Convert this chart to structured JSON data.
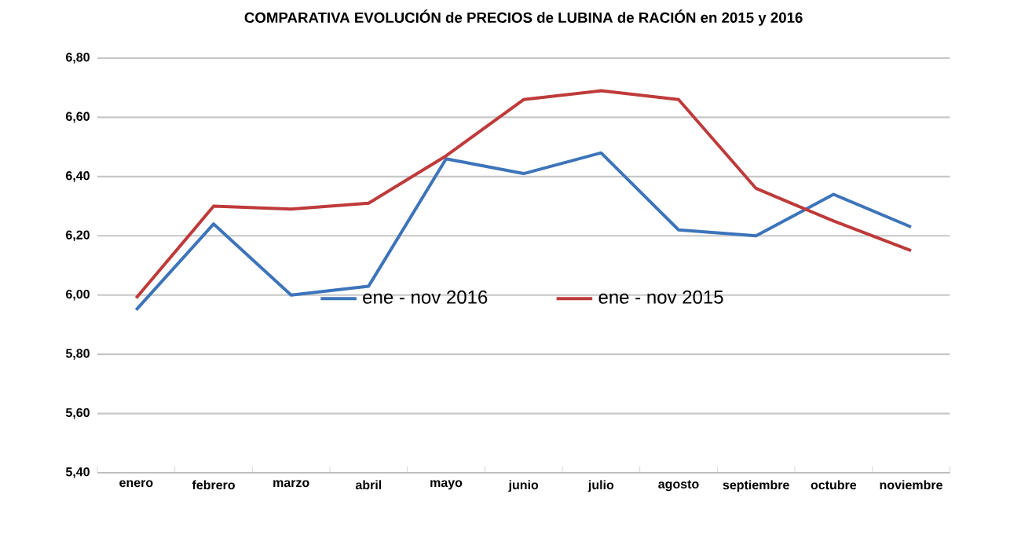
{
  "chart_data": {
    "type": "line",
    "title": "COMPARATIVA EVOLUCIÓN de PRECIOS de LUBINA de RACIÓN en 2015 y 2016",
    "categories": [
      "enero",
      "febrero",
      "marzo",
      "abril",
      "mayo",
      "junio",
      "julio",
      "agosto",
      "septiembre",
      "octubre",
      "noviembre"
    ],
    "series": [
      {
        "name": "ene - nov 2016",
        "color": "#3d74ba",
        "values": [
          5.95,
          6.24,
          6.0,
          6.03,
          6.46,
          6.41,
          6.48,
          6.22,
          6.2,
          6.34,
          6.23
        ]
      },
      {
        "name": "ene - nov 2015",
        "color": "#bf3a3a",
        "values": [
          5.99,
          6.3,
          6.29,
          6.31,
          6.47,
          6.66,
          6.69,
          6.66,
          6.36,
          6.25,
          6.15
        ]
      }
    ],
    "ylim": [
      5.4,
      6.8
    ],
    "yticks": [
      {
        "value": 5.4,
        "label": "5,40"
      },
      {
        "value": 5.6,
        "label": "5,60"
      },
      {
        "value": 5.8,
        "label": "5,80"
      },
      {
        "value": 6.0,
        "label": "6,00"
      },
      {
        "value": 6.2,
        "label": "6,20"
      },
      {
        "value": 6.4,
        "label": "6,40"
      },
      {
        "value": 6.6,
        "label": "6,60"
      },
      {
        "value": 6.8,
        "label": "6,80"
      }
    ],
    "grid": "y",
    "legend": "center",
    "marker": "none",
    "line_style": "solid"
  }
}
